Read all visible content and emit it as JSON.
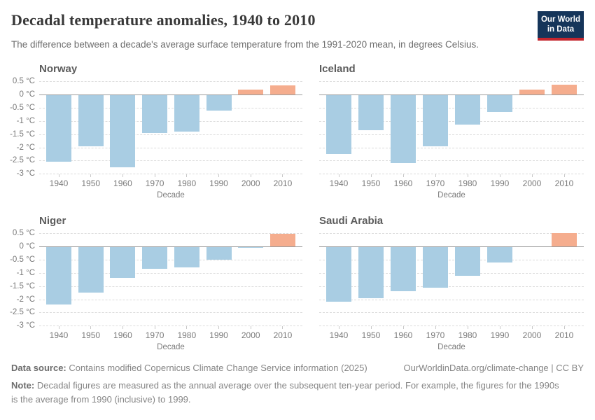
{
  "header": {
    "title": "Decadal temperature anomalies, 1940 to 2010",
    "subtitle": "The difference between a decade's average surface temperature from the 1991-2020 mean, in degrees Celsius."
  },
  "logo": {
    "line1": "Our World",
    "line2": "in Data"
  },
  "colors": {
    "bar_negative": "#a9cde3",
    "bar_positive": "#f5ad8e",
    "gridline": "#dcdcdc",
    "zero_line": "#9c9c9c",
    "logo_bg": "#15355a",
    "logo_red": "#c4262e"
  },
  "axis": {
    "ytick_values": [
      0.5,
      0,
      -0.5,
      -1,
      -1.5,
      -2,
      -2.5,
      -3
    ],
    "ytick_labels": [
      "0.5 °C",
      "0 °C",
      "-0.5 °C",
      "-1 °C",
      "-1.5 °C",
      "-2 °C",
      "-2.5 °C",
      "-3 °C"
    ],
    "ymax": 0.5,
    "ymin": -3,
    "xlabel": "Decade"
  },
  "chart_data": [
    {
      "type": "bar",
      "title": "Norway",
      "xlabel": "Decade",
      "categories": [
        "1940",
        "1950",
        "1960",
        "1970",
        "1980",
        "1990",
        "2000",
        "2010"
      ],
      "values": [
        -2.55,
        -1.95,
        -2.75,
        -1.45,
        -1.4,
        -0.6,
        0.2,
        0.35
      ],
      "ylim": [
        -3,
        0.5
      ],
      "ytick_interval": 0.5,
      "show_y_labels": true,
      "grid": true
    },
    {
      "type": "bar",
      "title": "Iceland",
      "xlabel": "Decade",
      "categories": [
        "1940",
        "1950",
        "1960",
        "1970",
        "1980",
        "1990",
        "2000",
        "2010"
      ],
      "values": [
        -2.25,
        -1.35,
        -2.6,
        -1.95,
        -1.15,
        -0.65,
        0.2,
        0.38
      ],
      "ylim": [
        -3,
        0.5
      ],
      "ytick_interval": 0.5,
      "show_y_labels": false,
      "grid": true
    },
    {
      "type": "bar",
      "title": "Niger",
      "xlabel": "Decade",
      "categories": [
        "1940",
        "1950",
        "1960",
        "1970",
        "1980",
        "1990",
        "2000",
        "2010"
      ],
      "values": [
        -2.2,
        -1.75,
        -1.2,
        -0.85,
        -0.8,
        -0.5,
        -0.04,
        0.47
      ],
      "ylim": [
        -3,
        0.5
      ],
      "ytick_interval": 0.5,
      "show_y_labels": true,
      "grid": true
    },
    {
      "type": "bar",
      "title": "Saudi Arabia",
      "xlabel": "Decade",
      "categories": [
        "1940",
        "1950",
        "1960",
        "1970",
        "1980",
        "1990",
        "2000",
        "2010"
      ],
      "values": [
        -2.1,
        -1.95,
        -1.7,
        -1.55,
        -1.1,
        -0.6,
        -0.02,
        0.5
      ],
      "ylim": [
        -3,
        0.5
      ],
      "ytick_interval": 0.5,
      "show_y_labels": false,
      "grid": true
    }
  ],
  "footer": {
    "datasource_label": "Data source:",
    "datasource_text": "Contains modified Copernicus Climate Change Service information (2025)",
    "credit": "OurWorldinData.org/climate-change | CC BY",
    "note_label": "Note:",
    "note_text": "Decadal figures are measured as the annual average over the subsequent ten-year period. For example, the figures for the 1990s is the average from 1990 (inclusive) to 1999."
  }
}
